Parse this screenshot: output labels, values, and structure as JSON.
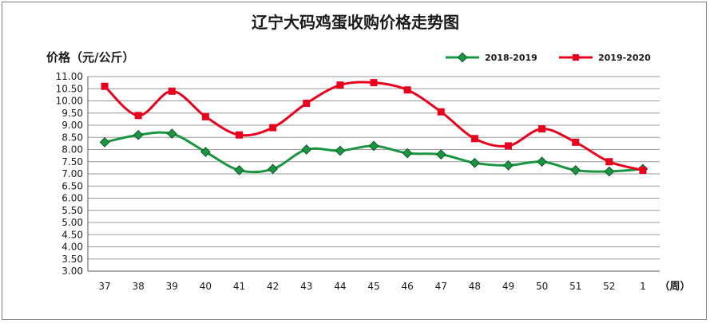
{
  "chart_data": {
    "type": "line",
    "title": "辽宁大码鸡蛋收购价格走势图",
    "ylabel": "价格（元/公斤）",
    "xlabel": "（周）",
    "categories": [
      "37",
      "38",
      "39",
      "40",
      "41",
      "42",
      "43",
      "44",
      "45",
      "46",
      "47",
      "48",
      "49",
      "50",
      "51",
      "52",
      "1"
    ],
    "ylim": [
      3.0,
      11.0
    ],
    "ytick_step": 0.5,
    "y_tick_labels": [
      "3.00",
      "3.50",
      "4.00",
      "4.50",
      "5.00",
      "5.50",
      "6.00",
      "6.50",
      "7.00",
      "7.50",
      "8.00",
      "8.50",
      "9.00",
      "9.50",
      "10.00",
      "10.50",
      "11.00"
    ],
    "grid": "horizontal",
    "legend_position": "top-right",
    "series": [
      {
        "name": "2018-2019",
        "color": "#1a9641",
        "marker": "diamond",
        "values": [
          8.3,
          8.6,
          8.65,
          7.9,
          7.15,
          7.2,
          8.0,
          7.95,
          8.15,
          7.85,
          7.8,
          7.45,
          7.35,
          7.5,
          7.15,
          7.1,
          7.2
        ]
      },
      {
        "name": "2019-2020",
        "color": "#e8001c",
        "marker": "square",
        "values": [
          10.6,
          9.4,
          10.4,
          9.35,
          8.6,
          8.9,
          9.9,
          10.65,
          10.75,
          10.45,
          9.55,
          8.45,
          8.15,
          8.85,
          8.3,
          7.5,
          7.15
        ]
      }
    ]
  }
}
